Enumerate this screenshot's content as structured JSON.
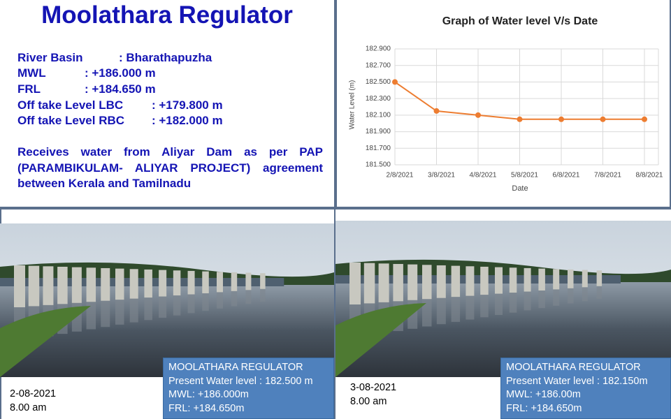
{
  "info": {
    "title": "Moolathara Regulator",
    "rows": [
      {
        "label": "River Basin",
        "value": ": Bharathapuzha"
      },
      {
        "label": "MWL",
        "value": ": +186.000 m"
      },
      {
        "label": "FRL",
        "value": ": +184.650 m"
      },
      {
        "label": "Off take Level LBC",
        "value": ": +179.800 m"
      },
      {
        "label": "Off take Level RBC",
        "value": ": +182.000 m"
      }
    ],
    "note": "Receives water from Aliyar Dam as per PAP (PARAMBIKULAM- ALIYAR PROJECT) agreement between Kerala and Tamilnadu"
  },
  "chart_data": {
    "type": "line",
    "title": "Graph of Water level V/s Date",
    "xlabel": "Date",
    "ylabel": "Water Level (m)",
    "categories": [
      "2/8/2021",
      "3/8/2021",
      "4/8/2021",
      "5/8/2021",
      "6/8/2021",
      "7/8/2021",
      "8/8/2021"
    ],
    "values": [
      182.5,
      182.15,
      182.1,
      182.05,
      182.05,
      182.05,
      182.05
    ],
    "color": "#ed7d31",
    "ylim": [
      181.5,
      182.9
    ],
    "yticks": [
      {
        "value": 181.5,
        "label": "181.500"
      },
      {
        "value": 181.7,
        "label": "181.700"
      },
      {
        "value": 181.9,
        "label": "181.900"
      },
      {
        "value": 182.1,
        "label": "182.100"
      },
      {
        "value": 182.3,
        "label": "182.300"
      },
      {
        "value": 182.5,
        "label": "182.500"
      },
      {
        "value": 182.7,
        "label": "182.700"
      },
      {
        "value": 182.9,
        "label": "182.900"
      }
    ],
    "grid": true
  },
  "photos": [
    {
      "date": "2-08-2021",
      "time": "8.00 am",
      "caption": [
        "MOOLATHARA REGULATOR",
        "Present Water level : 182.500 m",
        "MWL: +186.000m",
        "FRL: +184.650m"
      ]
    },
    {
      "date": "3-08-2021",
      "time": "8.00 am",
      "caption": [
        "MOOLATHARA REGULATOR",
        "Present Water level : 182.150m",
        "MWL: +186.00m",
        "FRL: +184.650m"
      ]
    }
  ]
}
